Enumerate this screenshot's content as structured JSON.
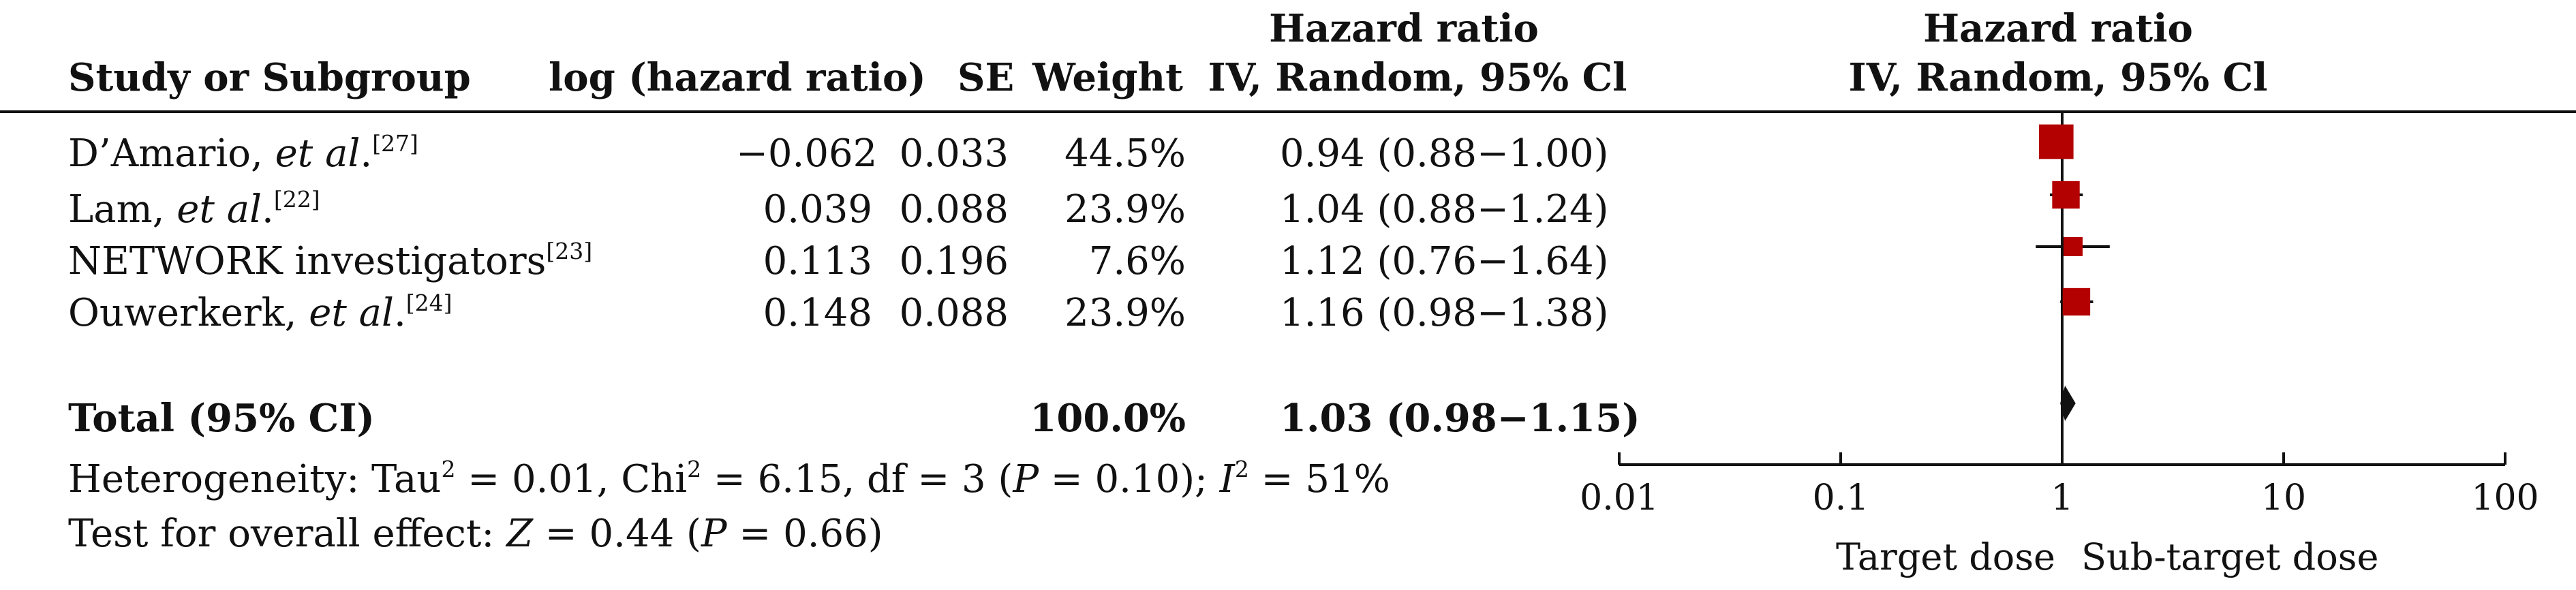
{
  "header": {
    "study_col": "Study or Subgroup",
    "log_col": "log (hazard ratio)",
    "se_col": "SE",
    "weight_col": "Weight",
    "hr_col_line1": "Hazard ratio",
    "hr_col_line2": "IV, Random, 95% Cl",
    "plot_col_line1": "Hazard ratio",
    "plot_col_line2": "IV, Random, 95% Cl"
  },
  "studies": [
    {
      "name": "D’Amario, ",
      "etal": "et al",
      "dot": ".",
      "ref": "[27]",
      "log_hr": "−0.062",
      "se": "0.033",
      "weight": "44.5%",
      "hr_ci": "0.94 (0.88−1.00)"
    },
    {
      "name": "Lam, ",
      "etal": "et al",
      "dot": ".",
      "ref": "[22]",
      "log_hr": "0.039",
      "se": "0.088",
      "weight": "23.9%",
      "hr_ci": "1.04 (0.88−1.24)"
    },
    {
      "name": "NETWORK investigators",
      "etal": "",
      "dot": "",
      "ref": "[23]",
      "log_hr": "0.113",
      "se": "0.196",
      "weight": "7.6%",
      "hr_ci": "1.12 (0.76−1.64)"
    },
    {
      "name": "Ouwerkerk, ",
      "etal": "et al",
      "dot": ".",
      "ref": "[24]",
      "log_hr": "0.148",
      "se": "0.088",
      "weight": "23.9%",
      "hr_ci": "1.16 (0.98−1.38)"
    }
  ],
  "total": {
    "label": "Total (95% CI)",
    "weight": "100.0%",
    "hr_ci": "1.03 (0.98−1.15)"
  },
  "heterogeneity": {
    "p1": "Heterogeneity: Tau",
    "sup1": "2",
    "p2": " = 0.01, Chi",
    "sup2": "2",
    "p3": " = 6.15, df = 3 (",
    "p_italic": "P",
    "p4": " = 0.10); ",
    "i_italic": "I",
    "sup3": "2",
    "p5": " = 51%"
  },
  "overall": {
    "p1": "Test for overall effect: ",
    "z_italic": "Z",
    "p2": " = 0.44 (",
    "p_italic": "P",
    "p3": " = 0.66)"
  },
  "colors": {
    "marker": "#b30000",
    "diamond": "#111111",
    "line": "#111111"
  },
  "chart_data": {
    "type": "forest",
    "x_scale": "log",
    "xlim": [
      0.01,
      100
    ],
    "x_ticks": [
      0.01,
      0.1,
      1,
      10,
      100
    ],
    "x_tick_labels": [
      "0.01",
      "0.1",
      "1",
      "10",
      "100"
    ],
    "reference_line": 1,
    "axis_labels_below": [
      "Target dose",
      "Sub-target dose"
    ],
    "studies": [
      {
        "hr": 0.94,
        "lo": 0.88,
        "hi": 1.0,
        "weight": 44.5
      },
      {
        "hr": 1.04,
        "lo": 0.88,
        "hi": 1.24,
        "weight": 23.9
      },
      {
        "hr": 1.12,
        "lo": 0.76,
        "hi": 1.64,
        "weight": 7.6
      },
      {
        "hr": 1.16,
        "lo": 0.98,
        "hi": 1.38,
        "weight": 23.9
      }
    ],
    "pooled": {
      "hr": 1.03,
      "lo": 0.98,
      "hi": 1.15
    }
  }
}
